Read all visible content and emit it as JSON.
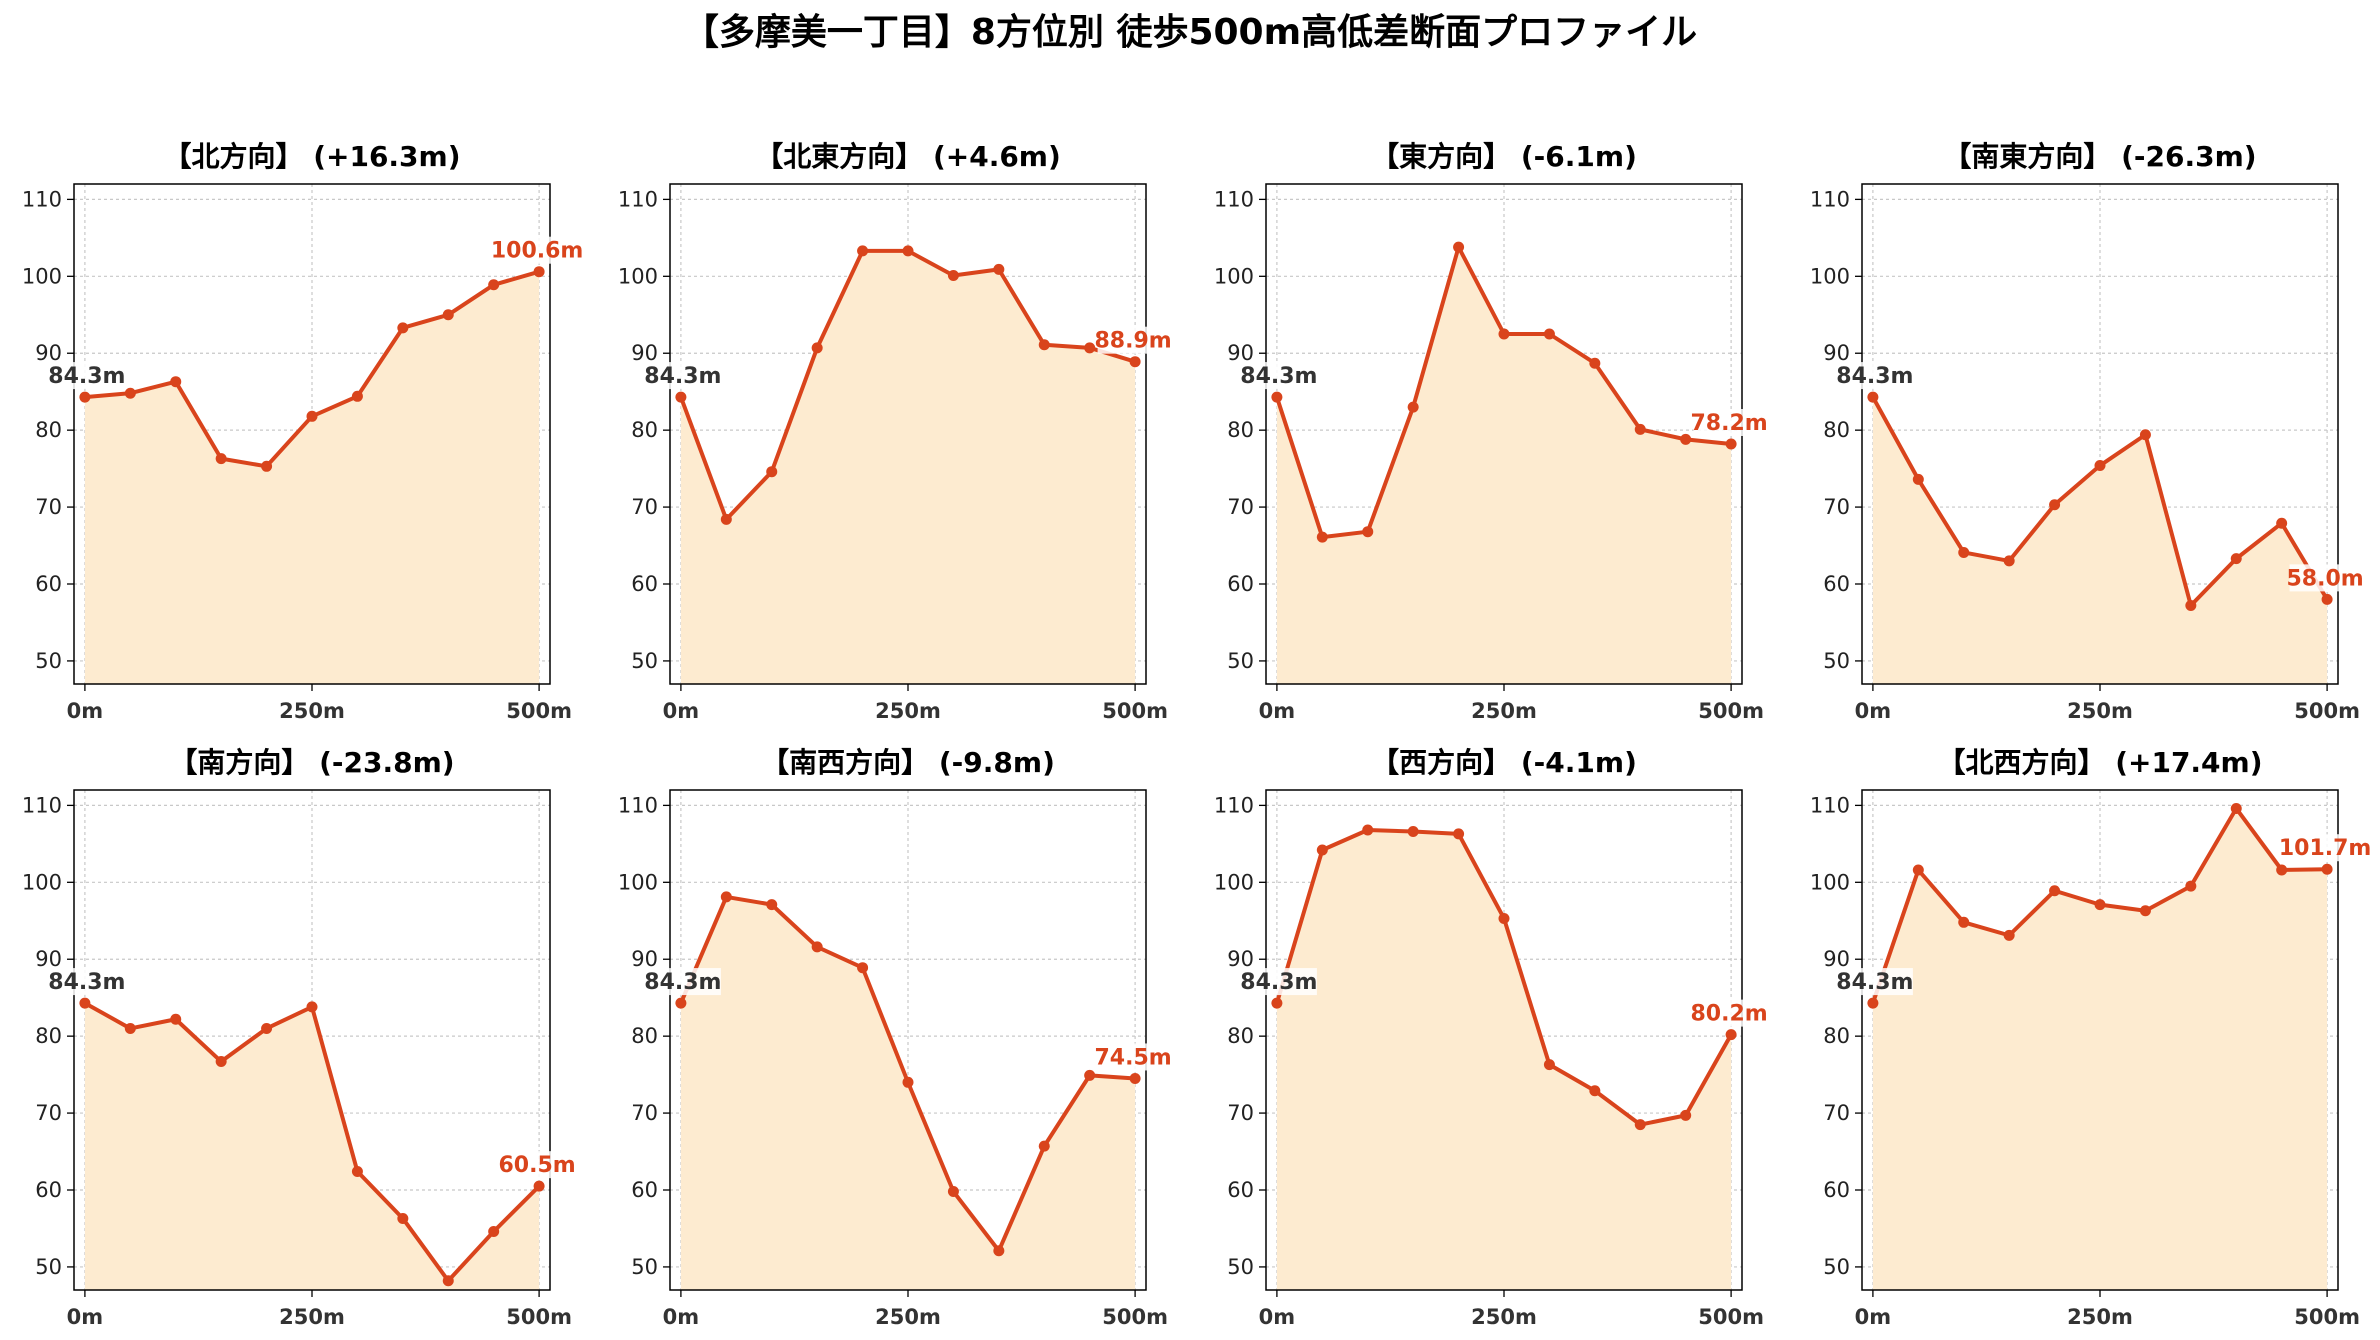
{
  "title": "【多摩美一丁目】8方位別 徒歩500m高低差断面プロファイル",
  "colors": {
    "line": "#d9441c",
    "fill": "#fdebd0",
    "start_label": "#333333",
    "end_label": "#d9441c"
  },
  "chart_data": [
    {
      "type": "area",
      "title": "【北方向】 (+16.3m)",
      "x": [
        0,
        50,
        100,
        150,
        200,
        250,
        300,
        350,
        400,
        450,
        500
      ],
      "values": [
        84.3,
        84.8,
        86.3,
        76.3,
        75.3,
        81.8,
        84.4,
        93.3,
        95.0,
        98.9,
        100.6
      ],
      "start_label": "84.3m",
      "end_label": "100.6m",
      "xticks": [
        "0m",
        "250m",
        "500m"
      ],
      "yticks": [
        "50",
        "60",
        "70",
        "80",
        "90",
        "100",
        "110"
      ],
      "ylim": [
        47,
        112
      ],
      "grid": true
    },
    {
      "type": "area",
      "title": "【北東方向】 (+4.6m)",
      "x": [
        0,
        50,
        100,
        150,
        200,
        250,
        300,
        350,
        400,
        450,
        500
      ],
      "values": [
        84.3,
        68.4,
        74.6,
        90.7,
        103.3,
        103.3,
        100.1,
        100.9,
        91.1,
        90.7,
        88.9
      ],
      "start_label": "84.3m",
      "end_label": "88.9m",
      "xticks": [
        "0m",
        "250m",
        "500m"
      ],
      "yticks": [
        "50",
        "60",
        "70",
        "80",
        "90",
        "100",
        "110"
      ],
      "ylim": [
        47,
        112
      ],
      "grid": true
    },
    {
      "type": "area",
      "title": "【東方向】 (-6.1m)",
      "x": [
        0,
        50,
        100,
        150,
        200,
        250,
        300,
        350,
        400,
        450,
        500
      ],
      "values": [
        84.3,
        66.1,
        66.8,
        83.0,
        103.8,
        92.5,
        92.5,
        88.7,
        80.1,
        78.8,
        78.2
      ],
      "start_label": "84.3m",
      "end_label": "78.2m",
      "xticks": [
        "0m",
        "250m",
        "500m"
      ],
      "yticks": [
        "50",
        "60",
        "70",
        "80",
        "90",
        "100",
        "110"
      ],
      "ylim": [
        47,
        112
      ],
      "grid": true
    },
    {
      "type": "area",
      "title": "【南東方向】 (-26.3m)",
      "x": [
        0,
        50,
        100,
        150,
        200,
        250,
        300,
        350,
        400,
        450,
        500
      ],
      "values": [
        84.3,
        73.6,
        64.1,
        63.0,
        70.3,
        75.4,
        79.4,
        57.2,
        63.3,
        67.9,
        58.0
      ],
      "start_label": "84.3m",
      "end_label": "58.0m",
      "xticks": [
        "0m",
        "250m",
        "500m"
      ],
      "yticks": [
        "50",
        "60",
        "70",
        "80",
        "90",
        "100",
        "110"
      ],
      "ylim": [
        47,
        112
      ],
      "grid": true
    },
    {
      "type": "area",
      "title": "【南方向】 (-23.8m)",
      "x": [
        0,
        50,
        100,
        150,
        200,
        250,
        300,
        350,
        400,
        450,
        500
      ],
      "values": [
        84.3,
        81.0,
        82.2,
        76.7,
        81.0,
        83.8,
        62.4,
        56.3,
        48.2,
        54.6,
        60.5
      ],
      "start_label": "84.3m",
      "end_label": "60.5m",
      "xticks": [
        "0m",
        "250m",
        "500m"
      ],
      "yticks": [
        "50",
        "60",
        "70",
        "80",
        "90",
        "100",
        "110"
      ],
      "ylim": [
        47,
        112
      ],
      "grid": true
    },
    {
      "type": "area",
      "title": "【南西方向】 (-9.8m)",
      "x": [
        0,
        50,
        100,
        150,
        200,
        250,
        300,
        350,
        400,
        450,
        500
      ],
      "values": [
        84.3,
        98.1,
        97.1,
        91.6,
        88.9,
        74.0,
        59.8,
        52.1,
        65.7,
        74.9,
        74.5
      ],
      "start_label": "84.3m",
      "end_label": "74.5m",
      "xticks": [
        "0m",
        "250m",
        "500m"
      ],
      "yticks": [
        "50",
        "60",
        "70",
        "80",
        "90",
        "100",
        "110"
      ],
      "ylim": [
        47,
        112
      ],
      "grid": true
    },
    {
      "type": "area",
      "title": "【西方向】 (-4.1m)",
      "x": [
        0,
        50,
        100,
        150,
        200,
        250,
        300,
        350,
        400,
        450,
        500
      ],
      "values": [
        84.3,
        104.2,
        106.8,
        106.6,
        106.3,
        95.3,
        76.3,
        72.9,
        68.5,
        69.7,
        80.2
      ],
      "start_label": "84.3m",
      "end_label": "80.2m",
      "xticks": [
        "0m",
        "250m",
        "500m"
      ],
      "yticks": [
        "50",
        "60",
        "70",
        "80",
        "90",
        "100",
        "110"
      ],
      "ylim": [
        47,
        112
      ],
      "grid": true
    },
    {
      "type": "area",
      "title": "【北西方向】 (+17.4m)",
      "x": [
        0,
        50,
        100,
        150,
        200,
        250,
        300,
        350,
        400,
        450,
        500
      ],
      "values": [
        84.3,
        101.6,
        94.8,
        93.1,
        98.9,
        97.1,
        96.3,
        99.5,
        109.6,
        101.6,
        101.7
      ],
      "start_label": "84.3m",
      "end_label": "101.7m",
      "xticks": [
        "0m",
        "250m",
        "500m"
      ],
      "yticks": [
        "50",
        "60",
        "70",
        "80",
        "90",
        "100",
        "110"
      ],
      "ylim": [
        47,
        112
      ],
      "grid": true
    }
  ]
}
